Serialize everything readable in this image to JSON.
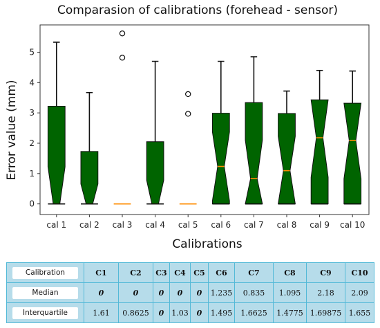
{
  "chart_data": {
    "type": "box",
    "title": "Comparasion of calibrations (forehead - sensor)",
    "xlabel": "Calibrations",
    "ylabel": "Error value (mm)",
    "ylim": [
      -0.35,
      5.9
    ],
    "yticks": [
      0,
      1,
      2,
      3,
      4,
      5
    ],
    "notched": true,
    "box_color": "#006400",
    "median_color": "#ff8c00",
    "categories": [
      "cal 1",
      "cal 2",
      "cal 3",
      "cal 4",
      "cal 5",
      "cal 6",
      "cal 7",
      "cal 8",
      "cal 9",
      "cal 10"
    ],
    "boxes": [
      {
        "q1": 0,
        "median": 0,
        "q3": 3.22,
        "whisker_low": 0,
        "whisker_high": 5.33,
        "outliers": []
      },
      {
        "q1": 0,
        "median": 0,
        "q3": 1.73,
        "whisker_low": 0,
        "whisker_high": 3.67,
        "outliers": []
      },
      {
        "q1": 0,
        "median": 0,
        "q3": 0,
        "whisker_low": 0,
        "whisker_high": 0,
        "outliers": [
          4.82,
          5.62
        ]
      },
      {
        "q1": 0,
        "median": 0,
        "q3": 2.05,
        "whisker_low": 0,
        "whisker_high": 4.7,
        "outliers": []
      },
      {
        "q1": 0,
        "median": 0,
        "q3": 0,
        "whisker_low": 0,
        "whisker_high": 0,
        "outliers": [
          2.97,
          3.62
        ]
      },
      {
        "q1": 0,
        "median": 1.235,
        "q3": 2.99,
        "whisker_low": 0,
        "whisker_high": 4.7,
        "outliers": []
      },
      {
        "q1": 0,
        "median": 0.835,
        "q3": 3.34,
        "whisker_low": 0,
        "whisker_high": 4.85,
        "outliers": []
      },
      {
        "q1": 0,
        "median": 1.095,
        "q3": 2.98,
        "whisker_low": 0,
        "whisker_high": 3.72,
        "outliers": []
      },
      {
        "q1": 0,
        "median": 2.18,
        "q3": 3.43,
        "whisker_low": 0,
        "whisker_high": 4.4,
        "outliers": []
      },
      {
        "q1": 0,
        "median": 2.09,
        "q3": 3.32,
        "whisker_low": 0,
        "whisker_high": 4.38,
        "outliers": []
      }
    ]
  },
  "table": {
    "header_label": "Calibration",
    "columns": [
      "C1",
      "C2",
      "C3",
      "C4",
      "C5",
      "C6",
      "C7",
      "C8",
      "C9",
      "C10"
    ],
    "rows": [
      {
        "label": "Median",
        "values": [
          "0",
          "0",
          "0",
          "0",
          "0",
          "1.235",
          "0.835",
          "1.095",
          "2.18",
          "2.09"
        ]
      },
      {
        "label": "Interquartile",
        "values": [
          "1.61",
          "0.8625",
          "0",
          "1.03",
          "0",
          "1.495",
          "1.6625",
          "1.4775",
          "1.69875",
          "1.655"
        ]
      }
    ]
  }
}
